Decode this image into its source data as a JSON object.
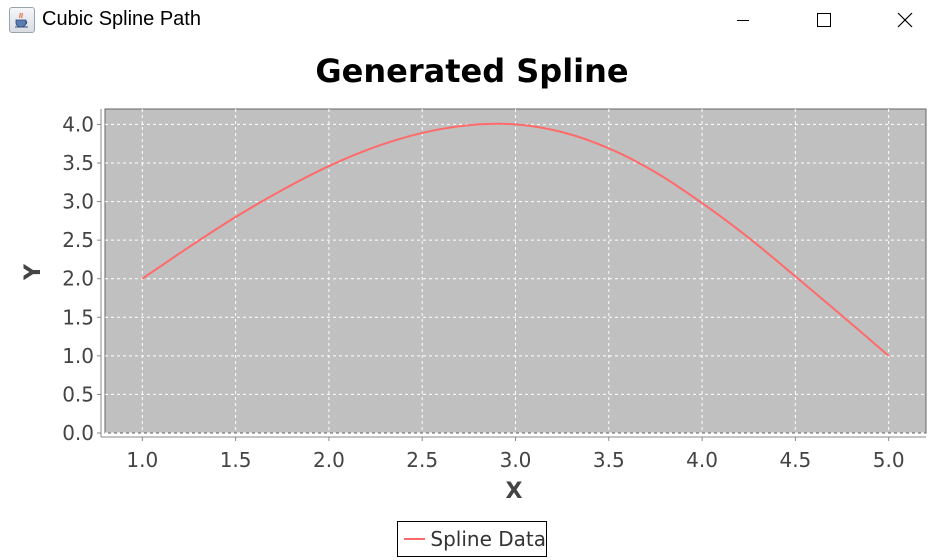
{
  "window": {
    "title": "Cubic Spline Path",
    "icon": "java-cup-icon",
    "buttons": [
      "minimize-icon",
      "maximize-icon",
      "close-icon"
    ]
  },
  "chart_data": {
    "type": "line",
    "title": "Generated Spline",
    "xlabel": "X",
    "ylabel": "Y",
    "xlim": [
      0.8,
      5.2
    ],
    "ylim": [
      0.0,
      4.2
    ],
    "xticks": [
      "1.0",
      "1.5",
      "2.0",
      "2.5",
      "3.0",
      "3.5",
      "4.0",
      "4.5",
      "5.0"
    ],
    "yticks": [
      "0.0",
      "0.5",
      "1.0",
      "1.5",
      "2.0",
      "2.5",
      "3.0",
      "3.5",
      "4.0"
    ],
    "grid": true,
    "legend_position": "bottom",
    "plot_background": "#c0c0c0",
    "series": [
      {
        "name": "Spline Data",
        "color": "#ff6a6a",
        "x": [
          1.0,
          1.25,
          1.5,
          1.75,
          2.0,
          2.25,
          2.5,
          2.75,
          3.0,
          3.25,
          3.5,
          3.75,
          4.0,
          4.25,
          4.5,
          4.75,
          5.0
        ],
        "y": [
          2.0,
          2.41,
          2.8,
          3.15,
          3.46,
          3.71,
          3.89,
          3.99,
          4.0,
          3.9,
          3.69,
          3.38,
          2.98,
          2.53,
          2.03,
          1.52,
          1.0
        ]
      }
    ]
  }
}
